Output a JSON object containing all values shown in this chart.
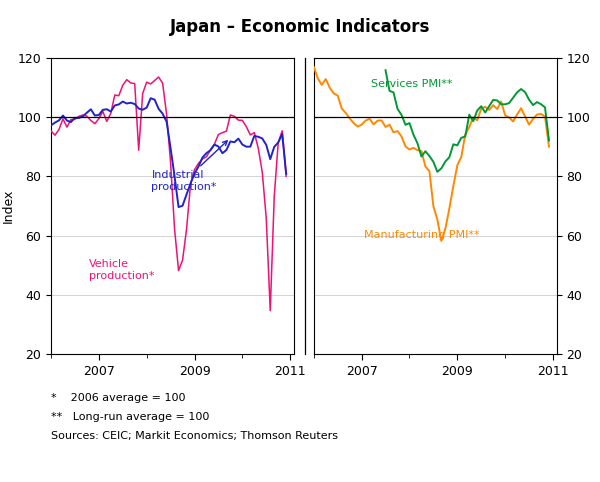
{
  "title": "Japan – Economic Indicators",
  "ylabel_left": "Index",
  "ylabel_right": "Index",
  "ylim": [
    20,
    120
  ],
  "yticks": [
    20,
    40,
    60,
    80,
    100,
    120
  ],
  "reference_line": 100,
  "footnote1": "*    2006 average = 100",
  "footnote2": "**   Long-run average = 100",
  "footnote3": "Sources: CEIC; Markit Economics; Thomson Reuters",
  "vehicle_color": "#EE1177",
  "industrial_color": "#2222CC",
  "services_color": "#009933",
  "manufacturing_color": "#FF8800",
  "background_color": "#ffffff"
}
